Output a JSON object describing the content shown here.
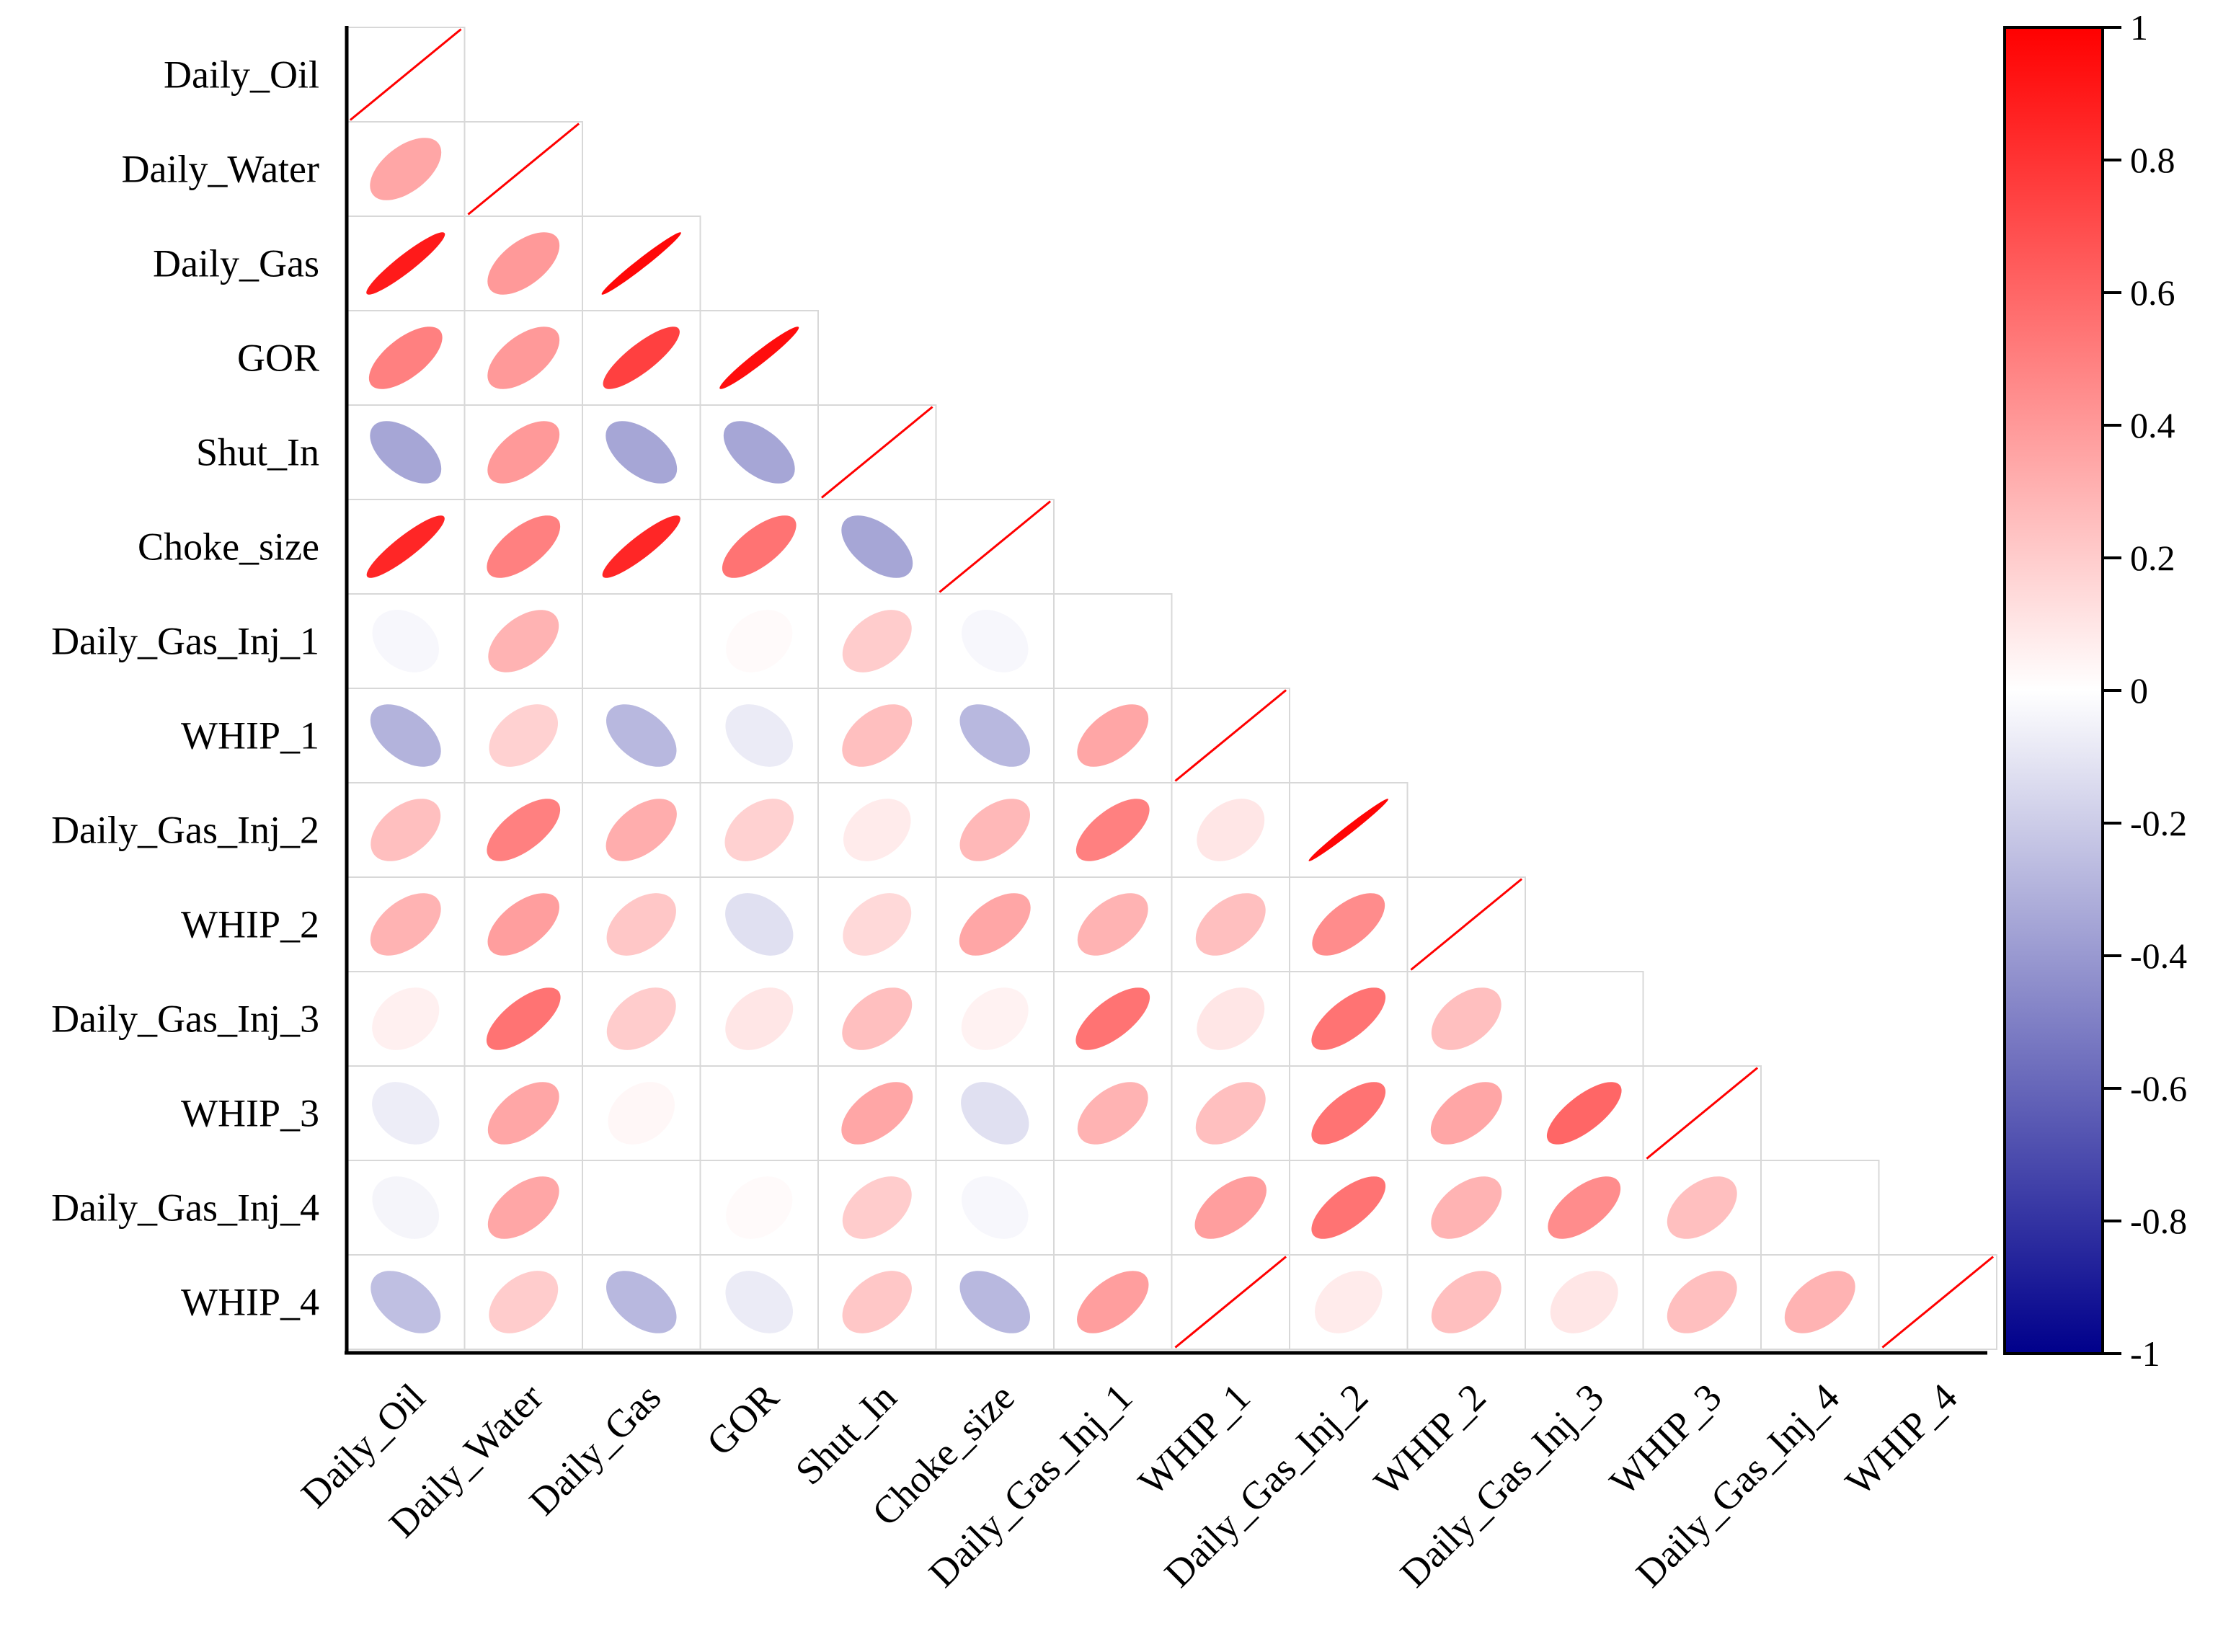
{
  "chart_data": {
    "type": "heatmap",
    "style": "lower-triangular correlation ellipse matrix",
    "variables": [
      "Daily_Oil",
      "Daily_Water",
      "Daily_Gas",
      "GOR",
      "Shut_In",
      "Choke_size",
      "Daily_Gas_Inj_1",
      "WHIP_1",
      "Daily_Gas_Inj_2",
      "WHIP_2",
      "Daily_Gas_Inj_3",
      "WHIP_3",
      "Daily_Gas_Inj_4",
      "WHIP_4"
    ],
    "correlation_rows": [
      [
        1.0
      ],
      [
        0.35,
        1.0
      ],
      [
        0.9,
        0.4,
        0.97
      ],
      [
        0.5,
        0.4,
        0.75,
        0.95
      ],
      [
        -0.35,
        0.4,
        -0.35,
        -0.35,
        1.0
      ],
      [
        0.85,
        0.5,
        0.85,
        0.55,
        -0.35,
        1.0
      ],
      [
        -0.03,
        0.3,
        0.0,
        0.02,
        0.2,
        -0.03,
        0.0
      ],
      [
        -0.3,
        0.18,
        -0.28,
        -0.08,
        0.25,
        -0.28,
        0.35,
        1.0
      ],
      [
        0.25,
        0.5,
        0.32,
        0.18,
        0.08,
        0.28,
        0.5,
        0.1,
        0.98
      ],
      [
        0.3,
        0.38,
        0.22,
        -0.12,
        0.15,
        0.35,
        0.3,
        0.25,
        0.45,
        1.0
      ],
      [
        0.06,
        0.55,
        0.2,
        0.1,
        0.25,
        0.05,
        0.55,
        0.1,
        0.55,
        0.25,
        0.0
      ],
      [
        -0.07,
        0.35,
        0.03,
        0.0,
        0.35,
        -0.12,
        0.3,
        0.25,
        0.55,
        0.35,
        0.6,
        1.0
      ],
      [
        -0.04,
        0.35,
        0.0,
        0.02,
        0.2,
        -0.03,
        0.0,
        0.38,
        0.55,
        0.3,
        0.45,
        0.25,
        0.0
      ],
      [
        -0.25,
        0.2,
        -0.28,
        -0.08,
        0.22,
        -0.28,
        0.38,
        1.0,
        0.08,
        0.25,
        0.1,
        0.25,
        0.3,
        1.0
      ]
    ],
    "colorbar": {
      "ticks": [
        "1",
        "0.8",
        "0.6",
        "0.4",
        "0.2",
        "0",
        "-0.2",
        "-0.4",
        "-0.6",
        "-0.8",
        "-1"
      ],
      "range": [
        -1,
        1
      ],
      "colors": {
        "low": "#00008b",
        "mid": "#ffffff",
        "high": "#ff0000"
      }
    },
    "title": "",
    "xlabel": "",
    "ylabel": ""
  }
}
